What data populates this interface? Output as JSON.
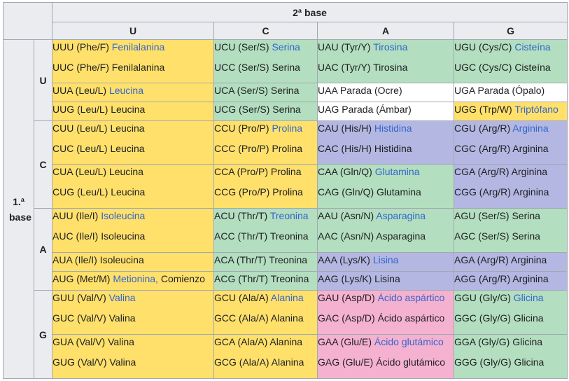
{
  "header": {
    "second_base": "2ª base",
    "first_base": "1.ª base",
    "columns": [
      "U",
      "C",
      "A",
      "G"
    ],
    "groups": [
      "U",
      "C",
      "A",
      "G"
    ]
  },
  "colors": {
    "hydrophobic": "#ffe06b",
    "polar": "#b3dec0",
    "stop": "#ffffff",
    "basic": "#b3b7e2",
    "acidic": "#f5b1d0",
    "link": "#3366cc"
  },
  "rows": [
    {
      "cells": [
        {
          "color": "yellow",
          "lines": [
            {
              "t": "UUU (Phe/F) ",
              "l": "Fenilalanina"
            },
            {
              "t": "UUC (Phe/F) Fenilalanina"
            }
          ]
        },
        {
          "color": "green",
          "lines": [
            {
              "t": "UCU (Ser/S) ",
              "l": "Serina"
            },
            {
              "t": "UCC (Ser/S) Serina"
            }
          ]
        },
        {
          "color": "green",
          "lines": [
            {
              "t": "UAU (Tyr/Y) ",
              "l": "Tirosina"
            },
            {
              "t": "UAC (Tyr/Y) Tirosina"
            }
          ]
        },
        {
          "color": "green",
          "lines": [
            {
              "t": "UGU (Cys/C) ",
              "l": "Cisteína"
            },
            {
              "t": "UGC (Cys/C) Cisteína"
            }
          ]
        }
      ]
    },
    {
      "cells": [
        {
          "color": "yellow",
          "lines": [
            {
              "t": "UUA (Leu/L) ",
              "l": "Leucina"
            }
          ]
        },
        {
          "color": "green",
          "lines": [
            {
              "t": "UCA (Ser/S) Serina"
            }
          ]
        },
        {
          "color": "white",
          "lines": [
            {
              "t": "UAA Parada (Ocre)"
            }
          ]
        },
        {
          "color": "white",
          "lines": [
            {
              "t": "UGA Parada (Ópalo)"
            }
          ]
        }
      ]
    },
    {
      "cells": [
        {
          "color": "yellow",
          "lines": [
            {
              "t": "UUG (Leu/L) Leucina"
            }
          ]
        },
        {
          "color": "green",
          "lines": [
            {
              "t": "UCG (Ser/S) Serina"
            }
          ]
        },
        {
          "color": "white",
          "lines": [
            {
              "t": "UAG Parada (Ámbar)"
            }
          ]
        },
        {
          "color": "yellow",
          "lines": [
            {
              "t": "UGG (Trp/W) ",
              "l": "Triptófano"
            }
          ]
        }
      ]
    },
    {
      "cells": [
        {
          "color": "yellow",
          "lines": [
            {
              "t": "CUU (Leu/L) Leucina"
            },
            {
              "t": "CUC (Leu/L) Leucina"
            }
          ]
        },
        {
          "color": "yellow",
          "lines": [
            {
              "t": "CCU (Pro/P) ",
              "l": "Prolina"
            },
            {
              "t": "CCC (Pro/P) Prolina"
            }
          ]
        },
        {
          "color": "purple",
          "lines": [
            {
              "t": "CAU (His/H) ",
              "l": "Histidina"
            },
            {
              "t": "CAC (His/H) Histidina"
            }
          ]
        },
        {
          "color": "purple",
          "lines": [
            {
              "t": "CGU (Arg/R) ",
              "l": "Arginina"
            },
            {
              "t": "CGC (Arg/R) Arginina"
            }
          ]
        }
      ]
    },
    {
      "cells": [
        {
          "color": "yellow",
          "lines": [
            {
              "t": "CUA (Leu/L) Leucina"
            },
            {
              "t": "CUG (Leu/L) Leucina"
            }
          ]
        },
        {
          "color": "yellow",
          "lines": [
            {
              "t": "CCA (Pro/P) Prolina"
            },
            {
              "t": "CCG (Pro/P) Prolina"
            }
          ]
        },
        {
          "color": "green",
          "lines": [
            {
              "t": "CAA (Gln/Q) ",
              "l": "Glutamina"
            },
            {
              "t": "CAG (Gln/Q) Glutamina"
            }
          ]
        },
        {
          "color": "purple",
          "lines": [
            {
              "t": "CGA (Arg/R) Arginina"
            },
            {
              "t": "CGG (Arg/R) Arginina"
            }
          ]
        }
      ]
    },
    {
      "cells": [
        {
          "color": "yellow",
          "lines": [
            {
              "t": "AUU (Ile/I) ",
              "l": "Isoleucina"
            },
            {
              "t": "AUC (Ile/I) Isoleucina"
            }
          ]
        },
        {
          "color": "green",
          "lines": [
            {
              "t": "ACU (Thr/T) ",
              "l": "Treonina"
            },
            {
              "t": "ACC (Thr/T) Treonina"
            }
          ]
        },
        {
          "color": "green",
          "lines": [
            {
              "t": "AAU (Asn/N) ",
              "l": "Asparagina"
            },
            {
              "t": "AAC (Asn/N) Asparagina"
            }
          ]
        },
        {
          "color": "green",
          "lines": [
            {
              "t": "AGU (Ser/S) Serina"
            },
            {
              "t": "AGC (Ser/S) Serina"
            }
          ]
        }
      ]
    },
    {
      "cells": [
        {
          "color": "yellow",
          "lines": [
            {
              "t": "AUA (Ile/I) Isoleucina"
            }
          ]
        },
        {
          "color": "green",
          "lines": [
            {
              "t": "ACA (Thr/T) Treonina"
            }
          ]
        },
        {
          "color": "purple",
          "lines": [
            {
              "t": "AAA (Lys/K) ",
              "l": "Lisina"
            }
          ]
        },
        {
          "color": "purple",
          "lines": [
            {
              "t": "AGA (Arg/R) Arginina"
            }
          ]
        }
      ]
    },
    {
      "cells": [
        {
          "color": "yellow",
          "lines": [
            {
              "t": "AUG (Met/M) ",
              "l": "Metionina,",
              "t2": " Comienzo"
            }
          ]
        },
        {
          "color": "green",
          "lines": [
            {
              "t": "ACG (Thr/T) Treonina"
            }
          ]
        },
        {
          "color": "purple",
          "lines": [
            {
              "t": "AAG (Lys/K) Lisina"
            }
          ]
        },
        {
          "color": "purple",
          "lines": [
            {
              "t": "AGG (Arg/R) Arginina"
            }
          ]
        }
      ]
    },
    {
      "cells": [
        {
          "color": "yellow",
          "lines": [
            {
              "t": "GUU (Val/V) ",
              "l": "Valina"
            },
            {
              "t": "GUC (Val/V) Valina"
            }
          ]
        },
        {
          "color": "yellow",
          "lines": [
            {
              "t": "GCU (Ala/A) ",
              "l": "Alanina"
            },
            {
              "t": "GCC (Ala/A) Alanina"
            }
          ]
        },
        {
          "color": "pink",
          "lines": [
            {
              "t": "GAU (Asp/D) ",
              "l": "Ácido aspártico"
            },
            {
              "t": "GAC (Asp/D) Ácido aspártico"
            }
          ]
        },
        {
          "color": "green",
          "lines": [
            {
              "t": "GGU (Gly/G) ",
              "l": "Glicina"
            },
            {
              "t": "GGC (Gly/G) Glicina"
            }
          ]
        }
      ]
    },
    {
      "cells": [
        {
          "color": "yellow",
          "lines": [
            {
              "t": "GUA (Val/V) Valina"
            },
            {
              "t": "GUG (Val/V) Valina"
            }
          ]
        },
        {
          "color": "yellow",
          "lines": [
            {
              "t": "GCA (Ala/A) Alanina"
            },
            {
              "t": "GCG (Ala/A) Alanina"
            }
          ]
        },
        {
          "color": "pink",
          "lines": [
            {
              "t": "GAA (Glu/E) ",
              "l": "Ácido glutámico"
            },
            {
              "t": "GAG (Glu/E) Ácido glutámico"
            }
          ]
        },
        {
          "color": "green",
          "lines": [
            {
              "t": "GGA (Gly/G) Glicina"
            },
            {
              "t": "GGG (Gly/G) Glicina"
            }
          ]
        }
      ]
    }
  ]
}
